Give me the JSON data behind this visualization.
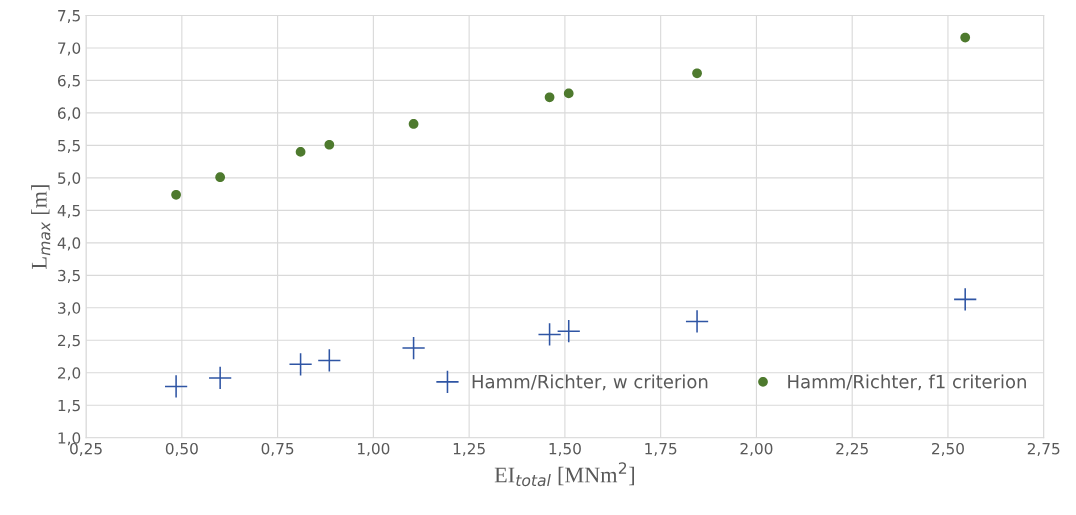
{
  "chart_data": {
    "type": "scatter",
    "xlabel": "EI$_{total}$ [MNm$^{2}$]",
    "ylabel": "L$_{max}$ [m]",
    "xlim": [
      0.25,
      2.75
    ],
    "ylim": [
      1.0,
      7.5
    ],
    "xticks": [
      {
        "value": 0.25,
        "label": "0,25"
      },
      {
        "value": 0.5,
        "label": "0,50"
      },
      {
        "value": 0.75,
        "label": "0,75"
      },
      {
        "value": 1.0,
        "label": "1,00"
      },
      {
        "value": 1.25,
        "label": "1,25"
      },
      {
        "value": 1.5,
        "label": "1,50"
      },
      {
        "value": 1.75,
        "label": "1,75"
      },
      {
        "value": 2.0,
        "label": "2,00"
      },
      {
        "value": 2.25,
        "label": "2,25"
      },
      {
        "value": 2.5,
        "label": "2,50"
      },
      {
        "value": 2.75,
        "label": "2,75"
      }
    ],
    "yticks": [
      {
        "value": 1.0,
        "label": "1,0"
      },
      {
        "value": 1.5,
        "label": "1,5"
      },
      {
        "value": 2.0,
        "label": "2,0"
      },
      {
        "value": 2.5,
        "label": "2,5"
      },
      {
        "value": 3.0,
        "label": "3,0"
      },
      {
        "value": 3.5,
        "label": "3,5"
      },
      {
        "value": 4.0,
        "label": "4,0"
      },
      {
        "value": 4.5,
        "label": "4,5"
      },
      {
        "value": 5.0,
        "label": "5,0"
      },
      {
        "value": 5.5,
        "label": "5,5"
      },
      {
        "value": 6.0,
        "label": "6,0"
      },
      {
        "value": 6.5,
        "label": "6,5"
      },
      {
        "value": 7.0,
        "label": "7,0"
      },
      {
        "value": 7.5,
        "label": "7,5"
      }
    ],
    "grid": true,
    "legend": "bottom right",
    "series": [
      {
        "name": "Hamm/Richter, w criterion",
        "color": "#2f55a4",
        "marker": "cross",
        "x": [
          0.485,
          0.6,
          0.81,
          0.885,
          1.105,
          1.46,
          1.51,
          1.845,
          2.545
        ],
        "values": [
          1.79,
          1.92,
          2.13,
          2.19,
          2.38,
          2.59,
          2.64,
          2.79,
          3.13
        ]
      },
      {
        "name": "Hamm/Richter, f1 criterion",
        "color": "#4e7a2e",
        "marker": "circle",
        "x": [
          0.485,
          0.6,
          0.81,
          0.885,
          1.105,
          1.46,
          1.51,
          1.845,
          2.545
        ],
        "values": [
          4.74,
          5.01,
          5.4,
          5.51,
          5.83,
          6.24,
          6.3,
          6.61,
          7.16
        ]
      }
    ]
  }
}
